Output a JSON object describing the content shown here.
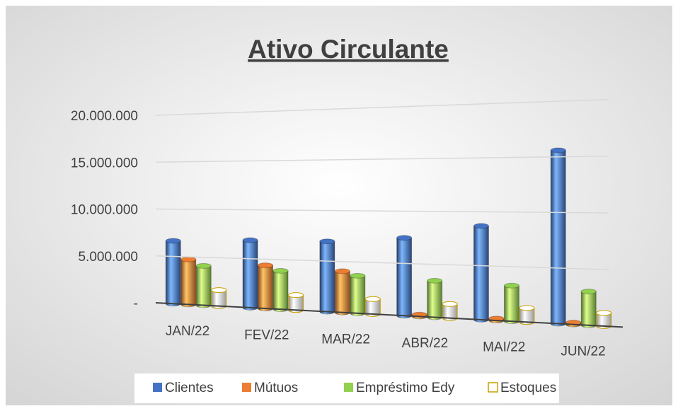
{
  "chart_data": {
    "type": "bar3d",
    "title": "Ativo Circulante",
    "categories": [
      "JAN/22",
      "FEV/22",
      "MAR/22",
      "ABR/22",
      "MAI/22",
      "JUN/22"
    ],
    "series": [
      {
        "name": "Clientes",
        "color": "#4472c4",
        "values": [
          6700000,
          7200000,
          7500000,
          8300000,
          10000000,
          18500000
        ]
      },
      {
        "name": "Mútuos",
        "color": "#ed7d31",
        "values": [
          4800000,
          4600000,
          4400000,
          200000,
          200000,
          200000
        ]
      },
      {
        "name": "Empréstimo Edy",
        "color": "#92d050",
        "values": [
          4200000,
          4100000,
          4000000,
          3900000,
          3800000,
          3600000
        ]
      },
      {
        "name": "Estoques",
        "color": "#ffffff",
        "values": [
          1700000,
          1600000,
          1600000,
          1500000,
          1500000,
          1400000
        ]
      }
    ],
    "ylim": [
      0,
      20000000
    ],
    "yticks": [
      {
        "value": 0,
        "label": "-"
      },
      {
        "value": 5000000,
        "label": "5.000.000"
      },
      {
        "value": 10000000,
        "label": "10.000.000"
      },
      {
        "value": 15000000,
        "label": "15.000.000"
      },
      {
        "value": 20000000,
        "label": "20.000.000"
      }
    ],
    "grid": true,
    "legend": "bottom"
  }
}
